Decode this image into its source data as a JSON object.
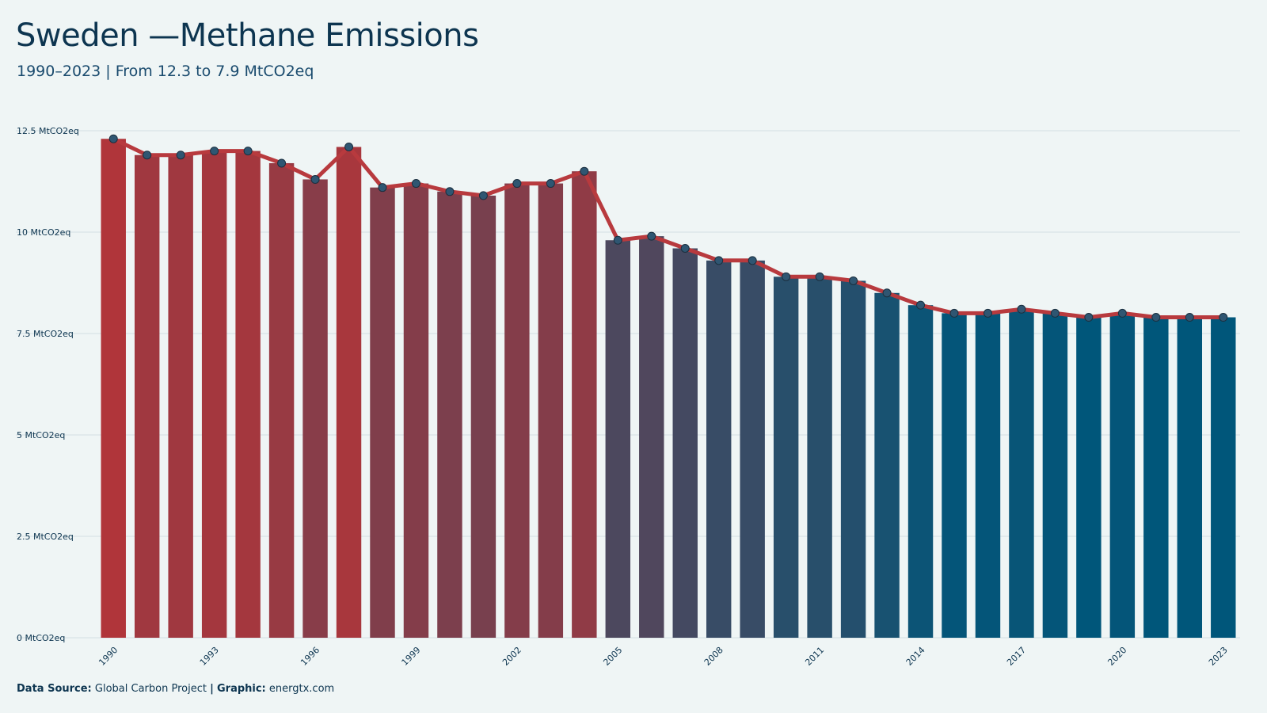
{
  "header": {
    "title": "Sweden —Methane Emissions",
    "subtitle": "1990–2023 | From 12.3 to 7.9 MtCO2eq"
  },
  "footer": {
    "source_label": "Data Source:",
    "source_value": "Global Carbon Project",
    "separator": "|",
    "graphic_label": "Graphic:",
    "graphic_value": "energtx.com"
  },
  "colors": {
    "background": "#eff5f5",
    "bar_high": "#b0353a",
    "bar_low": "#00567a",
    "line": "#b83a3e",
    "point_fill": "#2f5672",
    "grid": "#d3dee2",
    "text": "#0d3550"
  },
  "chart_data": {
    "type": "bar",
    "title": "Sweden —Methane Emissions",
    "subtitle": "1990–2023 | From 12.3 to 7.9 MtCO2eq",
    "unit": "MtCO2eq",
    "ylim": [
      0,
      12.5
    ],
    "yticks": [
      0,
      2.5,
      5,
      7.5,
      10,
      12.5
    ],
    "ytick_labels": [
      "0 MtCO2eq",
      "2.5 MtCO2eq",
      "5 MtCO2eq",
      "7.5 MtCO2eq",
      "10 MtCO2eq",
      "12.5 MtCO2eq"
    ],
    "xtick_labels": [
      "1990",
      "1993",
      "1996",
      "1999",
      "2002",
      "2005",
      "2008",
      "2011",
      "2014",
      "2017",
      "2020",
      "2023"
    ],
    "grid": true,
    "overlay": "line with points",
    "categories": [
      "1990",
      "1991",
      "1992",
      "1993",
      "1994",
      "1995",
      "1996",
      "1997",
      "1998",
      "1999",
      "2000",
      "2001",
      "2002",
      "2003",
      "2004",
      "2005",
      "2006",
      "2007",
      "2008",
      "2009",
      "2010",
      "2011",
      "2012",
      "2013",
      "2014",
      "2015",
      "2016",
      "2017",
      "2018",
      "2019",
      "2020",
      "2021",
      "2022",
      "2023"
    ],
    "values": [
      12.3,
      11.9,
      11.9,
      12.0,
      12.0,
      11.7,
      11.3,
      12.1,
      11.1,
      11.2,
      11.0,
      10.9,
      11.2,
      11.2,
      11.5,
      9.8,
      9.9,
      9.6,
      9.3,
      9.3,
      8.9,
      8.9,
      8.8,
      8.5,
      8.2,
      8.0,
      8.0,
      8.1,
      8.0,
      7.9,
      8.0,
      7.9,
      7.9,
      7.9
    ]
  }
}
